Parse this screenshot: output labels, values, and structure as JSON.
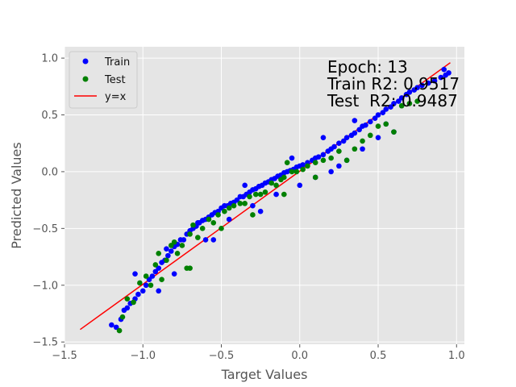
{
  "chart_data": {
    "type": "scatter",
    "title": "",
    "xlabel": "Target Values",
    "ylabel": "Predicted Values",
    "xlim": [
      -1.5,
      1.05
    ],
    "ylim": [
      -1.52,
      1.1
    ],
    "xticks": [
      -1.5,
      -1.0,
      -0.5,
      0.0,
      0.5,
      1.0
    ],
    "xtick_labels": [
      "−1.5",
      "−1.0",
      "−0.5",
      "0.0",
      "0.5",
      "1.0"
    ],
    "yticks": [
      -1.5,
      -1.0,
      -0.5,
      0.0,
      0.5,
      1.0
    ],
    "ytick_labels": [
      "−1.5",
      "−1.0",
      "−0.5",
      "0.0",
      "0.5",
      "1.0"
    ],
    "grid": true,
    "legend_position": "top-left",
    "annotations": [
      "Epoch: 13",
      "Train R2: 0.9517",
      "Test  R2: 0.9487"
    ],
    "series": [
      {
        "name": "Train",
        "type": "scatter",
        "color": "#0000ff",
        "points": [
          [
            -1.2,
            -1.35
          ],
          [
            -1.17,
            -1.37
          ],
          [
            -1.14,
            -1.3
          ],
          [
            -1.12,
            -1.22
          ],
          [
            -1.1,
            -1.2
          ],
          [
            -1.08,
            -1.16
          ],
          [
            -1.05,
            -1.12
          ],
          [
            -1.03,
            -1.08
          ],
          [
            -1.0,
            -1.05
          ],
          [
            -0.98,
            -1.0
          ],
          [
            -0.96,
            -0.95
          ],
          [
            -0.94,
            -0.92
          ],
          [
            -0.92,
            -0.88
          ],
          [
            -0.9,
            -0.85
          ],
          [
            -0.88,
            -0.8
          ],
          [
            -0.86,
            -0.78
          ],
          [
            -0.84,
            -0.74
          ],
          [
            -0.82,
            -0.7
          ],
          [
            -0.8,
            -0.66
          ],
          [
            -0.78,
            -0.64
          ],
          [
            -0.76,
            -0.6
          ],
          [
            -0.74,
            -0.6
          ],
          [
            -0.72,
            -0.55
          ],
          [
            -0.7,
            -0.52
          ],
          [
            -0.68,
            -0.5
          ],
          [
            -0.66,
            -0.48
          ],
          [
            -0.64,
            -0.45
          ],
          [
            -0.62,
            -0.43
          ],
          [
            -0.6,
            -0.42
          ],
          [
            -0.58,
            -0.4
          ],
          [
            -0.56,
            -0.38
          ],
          [
            -0.54,
            -0.36
          ],
          [
            -0.52,
            -0.35
          ],
          [
            -0.5,
            -0.32
          ],
          [
            -0.48,
            -0.3
          ],
          [
            -0.46,
            -0.3
          ],
          [
            -0.44,
            -0.28
          ],
          [
            -0.42,
            -0.27
          ],
          [
            -0.4,
            -0.25
          ],
          [
            -0.38,
            -0.22
          ],
          [
            -0.36,
            -0.22
          ],
          [
            -0.34,
            -0.2
          ],
          [
            -0.32,
            -0.18
          ],
          [
            -0.3,
            -0.16
          ],
          [
            -0.28,
            -0.15
          ],
          [
            -0.26,
            -0.13
          ],
          [
            -0.24,
            -0.12
          ],
          [
            -0.22,
            -0.1
          ],
          [
            -0.2,
            -0.09
          ],
          [
            -0.18,
            -0.07
          ],
          [
            -0.16,
            -0.06
          ],
          [
            -0.14,
            -0.04
          ],
          [
            -0.12,
            -0.03
          ],
          [
            -0.1,
            -0.01
          ],
          [
            -0.08,
            0.0
          ],
          [
            -0.06,
            0.01
          ],
          [
            -0.04,
            0.02
          ],
          [
            -0.02,
            0.04
          ],
          [
            0.0,
            0.05
          ],
          [
            0.02,
            0.06
          ],
          [
            0.05,
            0.08
          ],
          [
            0.08,
            0.1
          ],
          [
            0.1,
            0.12
          ],
          [
            0.12,
            0.13
          ],
          [
            0.15,
            0.15
          ],
          [
            0.18,
            0.18
          ],
          [
            0.2,
            0.2
          ],
          [
            0.22,
            0.22
          ],
          [
            0.25,
            0.25
          ],
          [
            0.28,
            0.27
          ],
          [
            0.3,
            0.3
          ],
          [
            0.33,
            0.32
          ],
          [
            0.35,
            0.34
          ],
          [
            0.38,
            0.37
          ],
          [
            0.4,
            0.4
          ],
          [
            0.42,
            0.41
          ],
          [
            0.45,
            0.44
          ],
          [
            0.48,
            0.47
          ],
          [
            0.5,
            0.5
          ],
          [
            0.53,
            0.52
          ],
          [
            0.55,
            0.55
          ],
          [
            0.58,
            0.57
          ],
          [
            0.6,
            0.6
          ],
          [
            0.63,
            0.62
          ],
          [
            0.65,
            0.65
          ],
          [
            0.68,
            0.68
          ],
          [
            0.7,
            0.7
          ],
          [
            0.73,
            0.72
          ],
          [
            0.75,
            0.74
          ],
          [
            0.78,
            0.76
          ],
          [
            0.82,
            0.78
          ],
          [
            0.86,
            0.8
          ],
          [
            0.9,
            0.83
          ],
          [
            0.93,
            0.85
          ],
          [
            0.95,
            0.87
          ],
          [
            0.92,
            0.9
          ],
          [
            -0.9,
            -1.05
          ],
          [
            -0.8,
            -0.9
          ],
          [
            -0.6,
            -0.6
          ],
          [
            -0.45,
            -0.42
          ],
          [
            -0.3,
            -0.3
          ],
          [
            -0.15,
            -0.2
          ],
          [
            0.0,
            -0.12
          ],
          [
            0.1,
            -0.05
          ],
          [
            0.2,
            0.0
          ],
          [
            0.3,
            0.1
          ],
          [
            0.4,
            0.2
          ],
          [
            0.5,
            0.3
          ],
          [
            -1.05,
            -0.9
          ],
          [
            -0.85,
            -0.68
          ],
          [
            -0.65,
            -0.45
          ],
          [
            -0.35,
            -0.12
          ],
          [
            -0.05,
            0.12
          ],
          [
            0.15,
            0.3
          ],
          [
            0.35,
            0.45
          ],
          [
            0.55,
            0.42
          ],
          [
            0.6,
            0.35
          ],
          [
            0.25,
            0.05
          ],
          [
            -0.25,
            -0.35
          ],
          [
            -0.55,
            -0.6
          ]
        ]
      },
      {
        "name": "Test",
        "type": "scatter",
        "color": "#008000",
        "points": [
          [
            -1.15,
            -1.4
          ],
          [
            -1.13,
            -1.28
          ],
          [
            -1.1,
            -1.12
          ],
          [
            -1.06,
            -1.15
          ],
          [
            -1.02,
            -0.98
          ],
          [
            -0.98,
            -0.92
          ],
          [
            -0.95,
            -1.0
          ],
          [
            -0.92,
            -0.82
          ],
          [
            -0.88,
            -0.95
          ],
          [
            -0.85,
            -0.78
          ],
          [
            -0.82,
            -0.65
          ],
          [
            -0.8,
            -0.62
          ],
          [
            -0.78,
            -0.72
          ],
          [
            -0.75,
            -0.65
          ],
          [
            -0.72,
            -0.85
          ],
          [
            -0.7,
            -0.55
          ],
          [
            -0.68,
            -0.47
          ],
          [
            -0.65,
            -0.58
          ],
          [
            -0.62,
            -0.5
          ],
          [
            -0.58,
            -0.42
          ],
          [
            -0.55,
            -0.45
          ],
          [
            -0.52,
            -0.38
          ],
          [
            -0.48,
            -0.35
          ],
          [
            -0.45,
            -0.32
          ],
          [
            -0.42,
            -0.3
          ],
          [
            -0.38,
            -0.28
          ],
          [
            -0.35,
            -0.28
          ],
          [
            -0.32,
            -0.22
          ],
          [
            -0.28,
            -0.2
          ],
          [
            -0.25,
            -0.2
          ],
          [
            -0.22,
            -0.18
          ],
          [
            -0.18,
            -0.1
          ],
          [
            -0.15,
            -0.12
          ],
          [
            -0.12,
            -0.07
          ],
          [
            -0.1,
            -0.05
          ],
          [
            -0.08,
            0.08
          ],
          [
            -0.05,
            0.0
          ],
          [
            -0.02,
            0.0
          ],
          [
            0.02,
            0.02
          ],
          [
            0.05,
            0.05
          ],
          [
            0.1,
            0.08
          ],
          [
            0.15,
            0.1
          ],
          [
            0.2,
            0.12
          ],
          [
            0.25,
            0.18
          ],
          [
            0.3,
            0.1
          ],
          [
            0.35,
            0.2
          ],
          [
            0.4,
            0.27
          ],
          [
            0.45,
            0.32
          ],
          [
            0.5,
            0.4
          ],
          [
            0.55,
            0.42
          ],
          [
            0.6,
            0.35
          ],
          [
            0.65,
            0.58
          ],
          [
            0.7,
            0.6
          ],
          [
            0.75,
            0.62
          ],
          [
            -0.9,
            -0.72
          ],
          [
            -0.7,
            -0.85
          ],
          [
            -0.5,
            -0.5
          ],
          [
            -0.3,
            -0.38
          ],
          [
            -0.1,
            -0.2
          ],
          [
            0.1,
            -0.05
          ]
        ]
      },
      {
        "name": "y=x",
        "type": "line",
        "color": "#ff0000",
        "points": [
          [
            -1.4,
            -1.39
          ],
          [
            0.96,
            0.96
          ]
        ]
      }
    ]
  }
}
